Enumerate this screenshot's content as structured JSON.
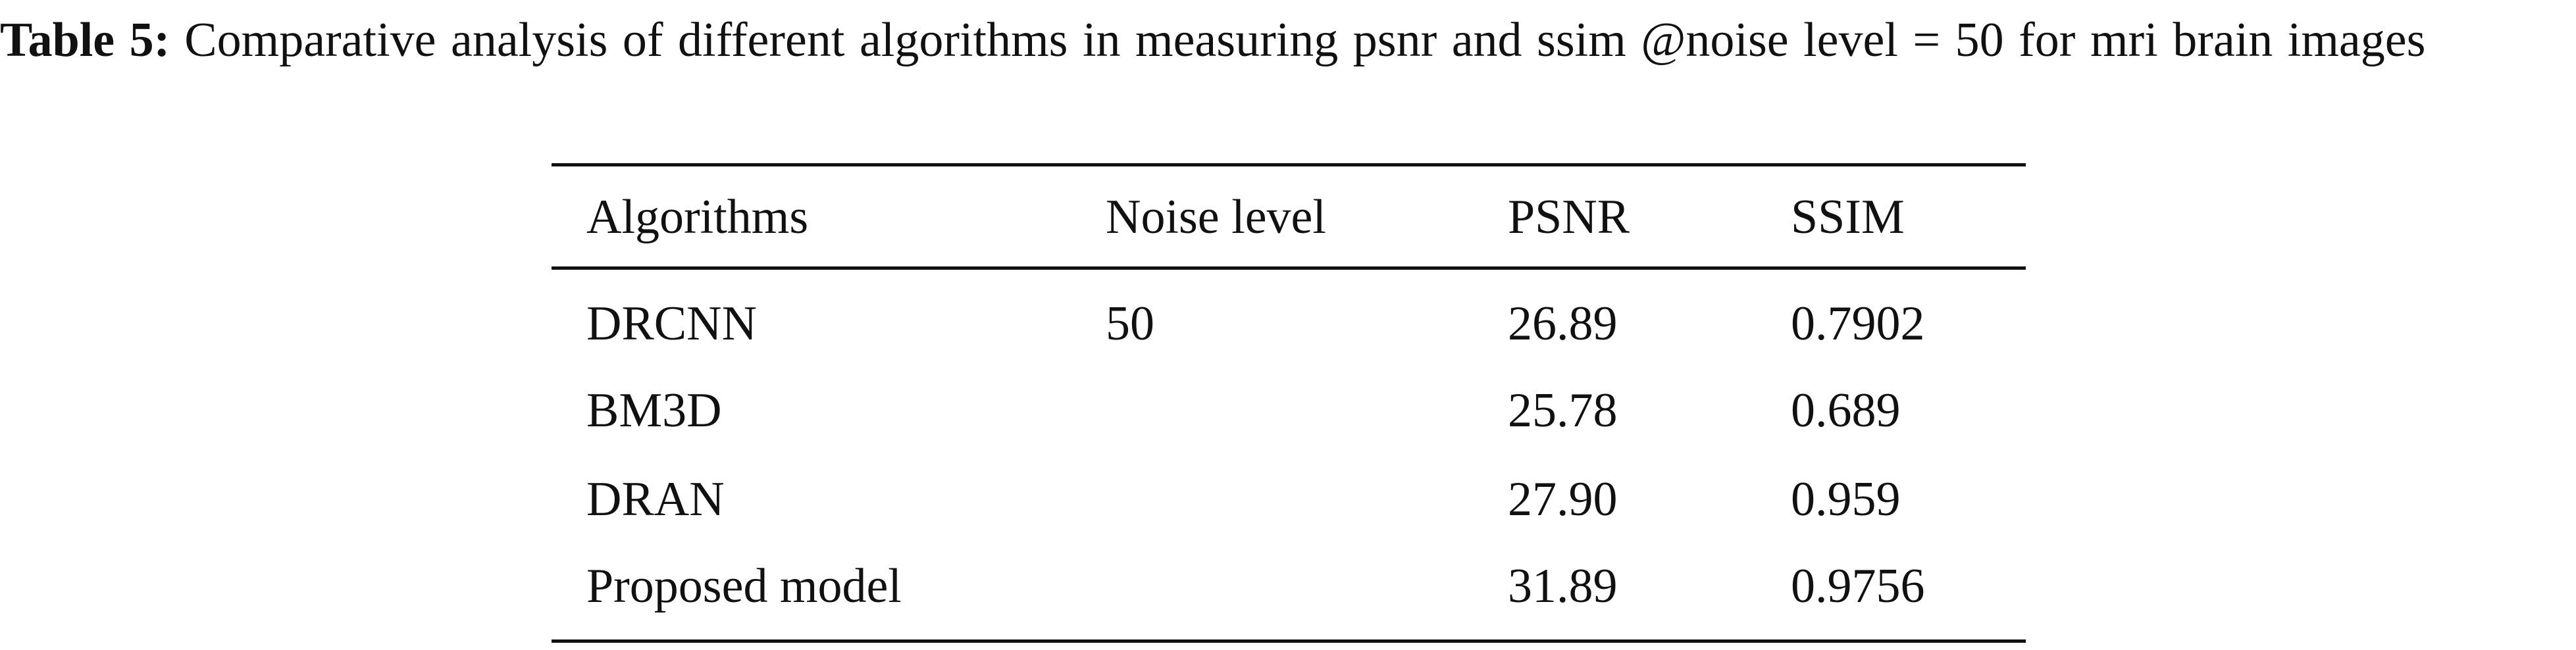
{
  "caption": {
    "label": "Table 5:",
    "text": "Comparative analysis of different algorithms in measuring psnr and ssim @noise level = 50 for mri brain images"
  },
  "table": {
    "headers": [
      "Algorithms",
      "Noise level",
      "PSNR",
      "SSIM"
    ],
    "rows": [
      {
        "algorithm": "DRCNN",
        "noise_level": "50",
        "psnr": "26.89",
        "ssim": "0.7902"
      },
      {
        "algorithm": "BM3D",
        "psnr": "25.78",
        "ssim": "0.689"
      },
      {
        "algorithm": "DRAN",
        "psnr": "27.90",
        "ssim": "0.959"
      },
      {
        "algorithm": "Proposed model",
        "psnr": "31.89",
        "ssim": "0.9756"
      }
    ]
  }
}
